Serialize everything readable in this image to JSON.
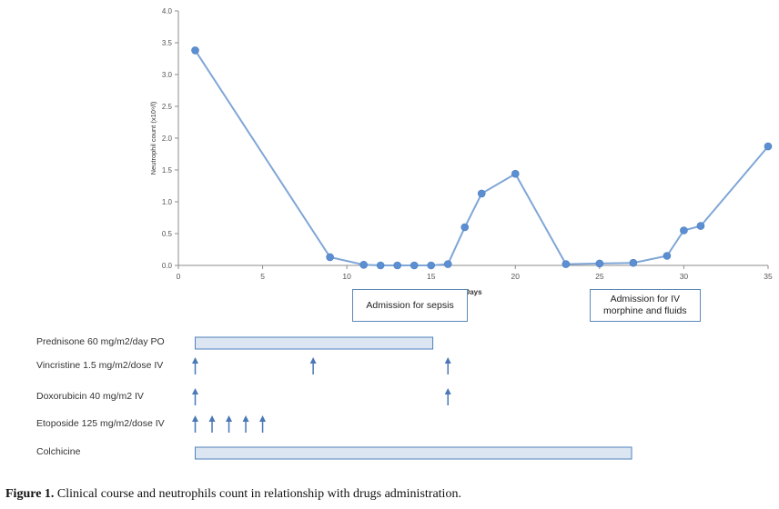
{
  "chart_data": {
    "type": "line",
    "xlabel": "Days",
    "ylabel": "Neutrophil count (x10⁹/l)",
    "xlim": [
      0,
      35
    ],
    "ylim": [
      0,
      4.0
    ],
    "x_ticks": [
      "0",
      "5",
      "10",
      "15",
      "20",
      "25",
      "30",
      "35"
    ],
    "y_ticks": [
      "0.0",
      "0.5",
      "1.0",
      "1.5",
      "2.0",
      "2.5",
      "3.0",
      "3.5",
      "4.0"
    ],
    "grid": false,
    "series": [
      {
        "color": "#7fa6d6",
        "marker_color": "#5b8fd1",
        "points": [
          {
            "x": 1,
            "y": 3.38
          },
          {
            "x": 9,
            "y": 0.13
          },
          {
            "x": 11,
            "y": 0.01
          },
          {
            "x": 12,
            "y": 0.0
          },
          {
            "x": 13,
            "y": 0.0
          },
          {
            "x": 14,
            "y": 0.0
          },
          {
            "x": 15,
            "y": 0.0
          },
          {
            "x": 16,
            "y": 0.02
          },
          {
            "x": 17,
            "y": 0.6
          },
          {
            "x": 18,
            "y": 1.13
          },
          {
            "x": 20,
            "y": 1.44
          },
          {
            "x": 23,
            "y": 0.02
          },
          {
            "x": 25,
            "y": 0.03
          },
          {
            "x": 27,
            "y": 0.04
          },
          {
            "x": 29,
            "y": 0.15
          },
          {
            "x": 30,
            "y": 0.55
          },
          {
            "x": 31,
            "y": 0.62
          },
          {
            "x": 35,
            "y": 1.87
          }
        ]
      }
    ],
    "annotations": [
      {
        "text": "Admission for sepsis",
        "x_start": 10.3,
        "x_end": 17.2
      },
      {
        "text": "Admission for IV morphine and fluids",
        "x_start": 24.4,
        "x_end": 31.0
      }
    ],
    "drugs": [
      {
        "label": "Prednisone 60 mg/m2/day PO",
        "kind": "bar",
        "start": 1,
        "end": 15.1
      },
      {
        "label": "Vincristine 1.5 mg/m2/dose IV",
        "kind": "arrows",
        "days": [
          1,
          8,
          16
        ]
      },
      {
        "label": "Doxorubicin 40 mg/m2 IV",
        "kind": "arrows",
        "days": [
          1,
          16
        ]
      },
      {
        "label": "Etoposide 125 mg/m2/dose IV",
        "kind": "arrows",
        "days": [
          1,
          2,
          3,
          4,
          5
        ]
      },
      {
        "label": "Colchicine",
        "kind": "bar",
        "start": 1,
        "end": 26.9
      }
    ]
  },
  "caption": {
    "prefix": "Figure 1.",
    "text": " Clinical course and neutrophils count in relationship with drugs administration."
  },
  "colors": {
    "line": "#7fa6d6",
    "marker": "#5b8fd1",
    "bar_fill": "#dce6f2",
    "bar_stroke": "#4f81bd",
    "arrow": "#4a78b5",
    "axis": "#8c8c8c"
  }
}
